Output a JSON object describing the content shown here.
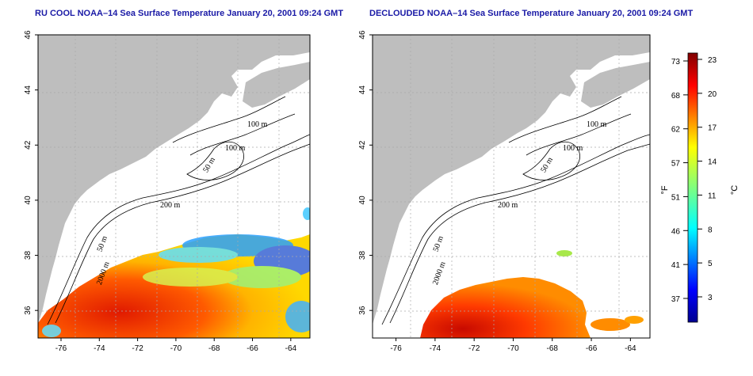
{
  "titles": {
    "left": "RU COOL NOAA–14 Sea Surface Temperature January 20, 2001 09:24 GMT",
    "right": "DECLOUDED NOAA–14 Sea Surface Temperature January 20, 2001 09:24 GMT"
  },
  "map_axes": {
    "lon_ticks": [
      "-76",
      "-74",
      "-72",
      "-70",
      "-68",
      "-66",
      "-64"
    ],
    "lat_ticks": [
      "46",
      "44",
      "42",
      "40",
      "38",
      "36"
    ],
    "lon_range": [
      -77.2,
      -63
    ],
    "lat_range": [
      35,
      46
    ]
  },
  "contour_labels": [
    "100 m",
    "100 m",
    "50 m",
    "200 m",
    "50 m",
    "2000 m"
  ],
  "colorbar": {
    "unit_f": "°F",
    "unit_c": "°C",
    "fahrenheit_ticks": [
      "73",
      "68",
      "62",
      "57",
      "51",
      "46",
      "41",
      "37"
    ],
    "celsius_ticks": [
      "23",
      "20",
      "17",
      "14",
      "11",
      "8",
      "5",
      "3"
    ]
  },
  "colors": {
    "title": "#1a1aa6",
    "land": "#bebebe",
    "ocean": "#ffffff",
    "scale_low": "#00008f",
    "scale_high": "#800000"
  }
}
